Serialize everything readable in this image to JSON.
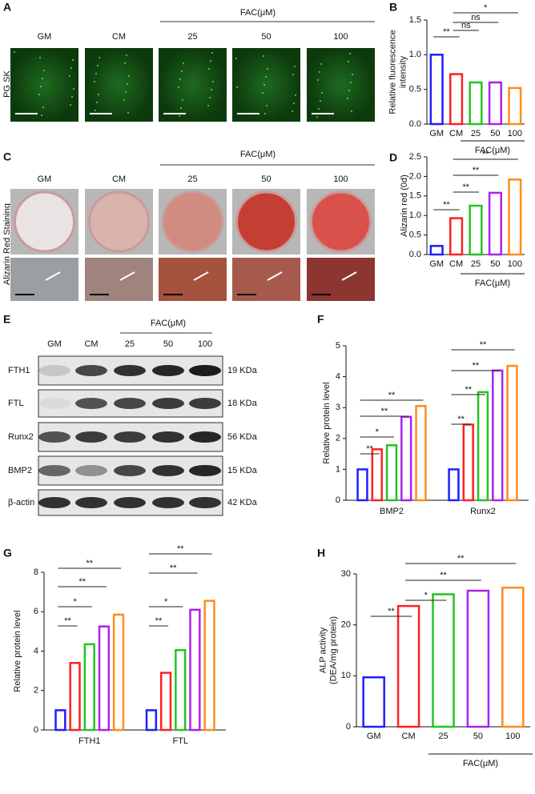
{
  "chart_data": [
    {
      "type": "bar",
      "panel_label": "B",
      "ylabel": [
        "Relative fluorescence",
        "intensity"
      ],
      "categories": [
        "GM",
        "CM",
        "25",
        "50",
        "100"
      ],
      "group_label": "FAC(μM)",
      "values": [
        1.0,
        0.72,
        0.6,
        0.6,
        0.52
      ],
      "colors": [
        "#1f1fff",
        "#ff2020",
        "#22c422",
        "#aa22ee",
        "#ff8c1a"
      ],
      "ylim": [
        0,
        1.5
      ],
      "yticks": [
        {
          "value": 0,
          "label": "0.0"
        },
        {
          "value": 0.5,
          "label": "0.5"
        },
        {
          "value": 1,
          "label": "1.0"
        },
        {
          "value": 1.5,
          "label": "1.5"
        }
      ],
      "annotations": [
        "**",
        "ns",
        "ns",
        "*"
      ]
    },
    {
      "type": "bar",
      "panel_label": "D",
      "ylabel": [
        "Alizarin red (0d)"
      ],
      "categories": [
        "GM",
        "CM",
        "25",
        "50",
        "100"
      ],
      "group_label": "FAC(μM)",
      "values": [
        0.22,
        0.93,
        1.25,
        1.58,
        1.92
      ],
      "colors": [
        "#1f1fff",
        "#ff2020",
        "#22c422",
        "#aa22ee",
        "#ff8c1a"
      ],
      "ylim": [
        0,
        2.5
      ],
      "yticks": [
        {
          "value": 0,
          "label": "0.0"
        },
        {
          "value": 0.5,
          "label": "0.5"
        },
        {
          "value": 1,
          "label": "1.0"
        },
        {
          "value": 1.5,
          "label": "1.5"
        },
        {
          "value": 2,
          "label": "2.0"
        },
        {
          "value": 2.5,
          "label": "2.5"
        }
      ],
      "annotations": [
        "**",
        "**",
        "**",
        "**"
      ]
    },
    {
      "type": "grouped-bar",
      "panel_label": "F",
      "ylabel": [
        "Relative protein level"
      ],
      "categories": [
        "BMP2",
        "Runx2"
      ],
      "series": [
        {
          "color": "#1f1fff",
          "values": [
            1,
            1
          ]
        },
        {
          "color": "#ff2020",
          "values": [
            1.65,
            2.45
          ]
        },
        {
          "color": "#22c422",
          "values": [
            1.78,
            3.5
          ]
        },
        {
          "color": "#aa22ee",
          "values": [
            2.7,
            4.2
          ]
        },
        {
          "color": "#ff8c1a",
          "values": [
            3.05,
            4.35
          ]
        }
      ],
      "ylim": [
        0,
        5
      ],
      "yticks": [
        0,
        1,
        2,
        3,
        4,
        5
      ],
      "annotations": [
        [
          "**",
          "*",
          "**",
          "**"
        ],
        [
          "**",
          "**",
          "**",
          "**"
        ]
      ]
    },
    {
      "type": "grouped-bar",
      "panel_label": "G",
      "ylabel": [
        "Relative protein level"
      ],
      "categories": [
        "FTH1",
        "FTL"
      ],
      "series": [
        {
          "color": "#1f1fff",
          "values": [
            1,
            1
          ]
        },
        {
          "color": "#ff2020",
          "values": [
            3.4,
            2.9
          ]
        },
        {
          "color": "#22c422",
          "values": [
            4.35,
            4.05
          ]
        },
        {
          "color": "#aa22ee",
          "values": [
            5.25,
            6.1
          ]
        },
        {
          "color": "#ff8c1a",
          "values": [
            5.85,
            6.55
          ]
        }
      ],
      "ylim": [
        0,
        8
      ],
      "yticks": [
        0,
        2,
        4,
        6,
        8
      ],
      "annotations": [
        [
          "**",
          "*",
          "**",
          "**"
        ],
        [
          "**",
          "*",
          "**",
          "**"
        ]
      ]
    },
    {
      "type": "bar",
      "panel_label": "H",
      "ylabel": [
        "ALP activity",
        "(DEA/mg protein)"
      ],
      "categories": [
        "GM",
        "CM",
        "25",
        "50",
        "100"
      ],
      "group_label": "FAC(μM)",
      "values": [
        9.7,
        23.7,
        26.0,
        26.7,
        27.3
      ],
      "colors": [
        "#1f1fff",
        "#ff2020",
        "#22c422",
        "#aa22ee",
        "#ff8c1a"
      ],
      "ylim": [
        0,
        30
      ],
      "yticks": [
        0,
        10,
        20,
        30
      ],
      "annotations": [
        "**",
        "*",
        "**",
        "**"
      ]
    }
  ],
  "panel_a": {
    "label": "A",
    "columns": [
      "GM",
      "CM",
      "25",
      "50",
      "100"
    ],
    "group_label": "FAC(μM)",
    "row_label": "PG SK"
  },
  "panel_c": {
    "label": "C",
    "columns": [
      "GM",
      "CM",
      "25",
      "50",
      "100"
    ],
    "group_label": "FAC(μM)",
    "row_label": "Alizarin Red Staining"
  },
  "panel_e": {
    "label": "E",
    "columns": [
      "GM",
      "CM",
      "25",
      "50",
      "100"
    ],
    "group_label": "FAC(μM)",
    "rows": [
      {
        "name": "FTH1",
        "size": "19 KDa"
      },
      {
        "name": "FTL",
        "size": "18 KDa"
      },
      {
        "name": "Runx2",
        "size": "56 KDa"
      },
      {
        "name": "BMP2",
        "size": "15 KDa"
      },
      {
        "name": "β-actin",
        "size": "42 KDa"
      }
    ]
  }
}
